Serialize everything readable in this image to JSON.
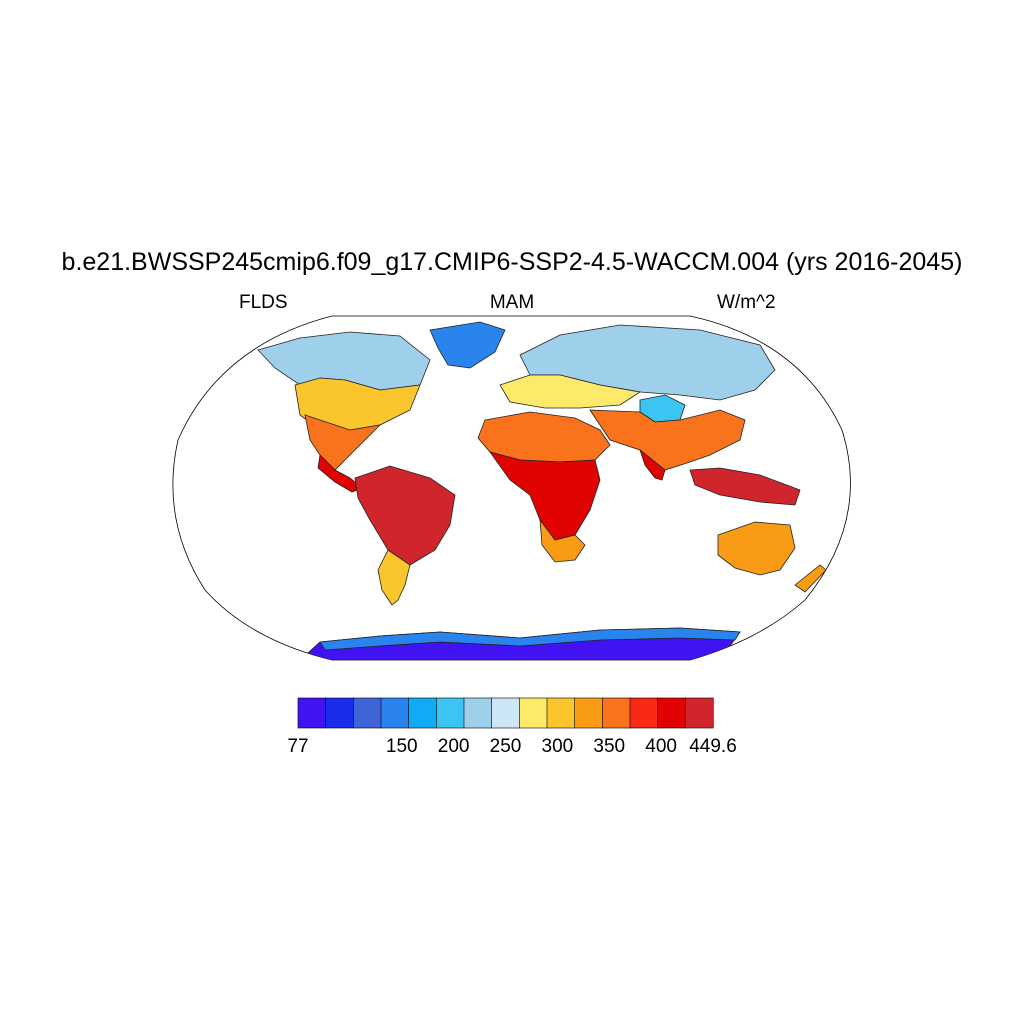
{
  "title": "b.e21.BWSSP245cmip6.f09_g17.CMIP6-SSP2-4.5-WACCM.004 (yrs 2016-2045)",
  "left_string": "FLDS",
  "center_string": "MAM",
  "right_string": "W/m^2",
  "colorbar": {
    "colors": [
      "#4112f2",
      "#1a2deb",
      "#3e64d8",
      "#2a84ee",
      "#10aaf5",
      "#3cc4f2",
      "#9ed0ec",
      "#cce6f6",
      "#fde96a",
      "#fbc52e",
      "#f99b14",
      "#f8731b",
      "#fa2916",
      "#e00302",
      "#d1252e"
    ],
    "labels": [
      "77",
      "",
      "150",
      "200",
      "250",
      "300",
      "350",
      "400",
      "449.6"
    ]
  },
  "map": {
    "projection": "Robinson",
    "land_color": "#c8c8c8",
    "ocean_color": "#ffffff"
  }
}
